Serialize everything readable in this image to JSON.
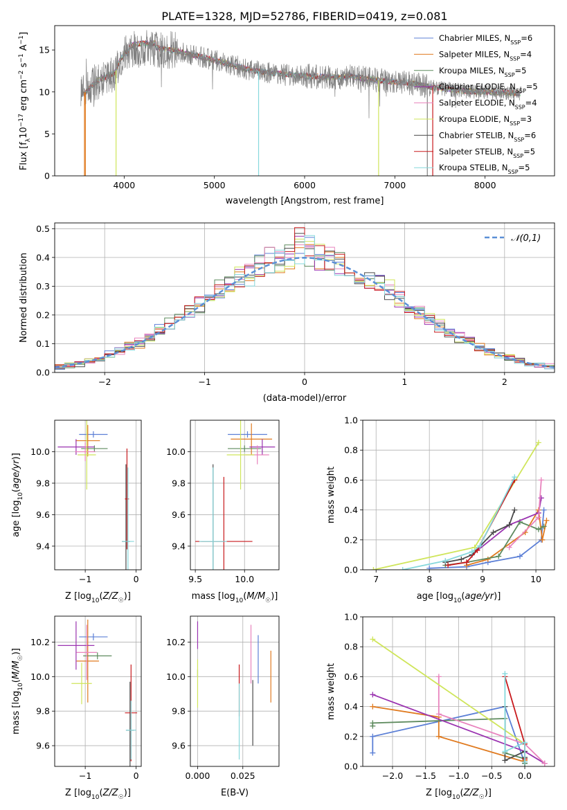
{
  "figure_title": "PLATE=1328, MJD=52786, FIBERID=0419, z=0.081",
  "colors": {
    "Chabrier MILES": "#5b7fd6",
    "Salpeter MILES": "#e07a1f",
    "Kroupa MILES": "#5d8a5d",
    "Chabrier ELODIE": "#9a32b0",
    "Salpeter ELODIE": "#e883bd",
    "Kroupa ELODIE": "#cfe55a",
    "Chabrier STELIB": "#4a4a4a",
    "Salpeter STELIB": "#c8191c",
    "Kroupa STELIB": "#86d8dc",
    "data": "#808080"
  },
  "chart_data": [
    {
      "id": "spectrum",
      "type": "line",
      "xlabel": "wavelength [Angstrom, rest frame]",
      "ylabel": "Flux [f_λ10^-17 erg cm^-2 s^-1 A^-1]",
      "xlim": [
        3230,
        8770
      ],
      "ylim": [
        0,
        17.9
      ],
      "xticks": [
        4000,
        5000,
        6000,
        7000,
        8000
      ],
      "yticks": [
        0,
        5,
        10,
        15
      ],
      "grid": false,
      "legend_position": "right",
      "legend": [
        {
          "name": "Chabrier MILES",
          "nssp": "6"
        },
        {
          "name": "Salpeter MILES",
          "nssp": "4"
        },
        {
          "name": "Kroupa MILES",
          "nssp": "5"
        },
        {
          "name": "Chabrier ELODIE",
          "nssp": "5"
        },
        {
          "name": "Salpeter ELODIE",
          "nssp": "4"
        },
        {
          "name": "Kroupa ELODIE",
          "nssp": "3"
        },
        {
          "name": "Chabrier STELIB",
          "nssp": "6"
        },
        {
          "name": "Salpeter STELIB",
          "nssp": "5"
        },
        {
          "name": "Kroupa STELIB",
          "nssp": "5"
        }
      ],
      "continuum": [
        [
          3520,
          9.5
        ],
        [
          3600,
          10.3
        ],
        [
          3700,
          11.3
        ],
        [
          3800,
          11.8
        ],
        [
          3900,
          12.3
        ],
        [
          3950,
          13.7
        ],
        [
          4000,
          14.6
        ],
        [
          4100,
          15.0
        ],
        [
          4200,
          15.2
        ],
        [
          4400,
          15.2
        ],
        [
          4600,
          14.8
        ],
        [
          4800,
          14.3
        ],
        [
          5000,
          13.8
        ],
        [
          5200,
          13.2
        ],
        [
          5400,
          12.6
        ],
        [
          5600,
          12.3
        ],
        [
          5800,
          12.1
        ],
        [
          6000,
          11.9
        ],
        [
          6200,
          11.8
        ],
        [
          6400,
          11.7
        ],
        [
          6500,
          11.9
        ],
        [
          6600,
          11.7
        ],
        [
          6800,
          11.4
        ],
        [
          7000,
          11.2
        ],
        [
          7200,
          11.0
        ],
        [
          7400,
          10.6
        ],
        [
          7600,
          10.3
        ],
        [
          7800,
          10.1
        ],
        [
          8000,
          10.0
        ],
        [
          8200,
          9.9
        ],
        [
          8400,
          9.8
        ]
      ]
    },
    {
      "id": "residuals",
      "type": "histogram",
      "xlabel": "(data-model)/error",
      "ylabel": "Normed distribution",
      "xlim": [
        -2.5,
        2.5
      ],
      "ylim": [
        0,
        0.52
      ],
      "xticks": [
        -2,
        -1,
        0,
        1,
        2
      ],
      "yticks": [
        0.0,
        0.1,
        0.2,
        0.3,
        0.4,
        0.5
      ],
      "grid": true,
      "bin_width": 0.1,
      "legend_position": "top-right",
      "legend": [
        {
          "name": "𝒩(0,1)"
        }
      ],
      "reference_curve": "normal pdf, mean 0, sigma 1"
    },
    {
      "id": "age_vs_Z",
      "type": "errorbar",
      "xlabel": "Z [log10(Z/Z☉)]",
      "ylabel": "age [log10(age/yr)]",
      "xlim": [
        -1.6,
        0.1
      ],
      "ylim": [
        9.25,
        10.2
      ],
      "xticks": [
        -1,
        0
      ],
      "yticks": [
        9.4,
        9.6,
        9.8,
        10.0
      ],
      "grid": true,
      "points": [
        {
          "model": "Chabrier MILES",
          "x": -0.84,
          "xerr": 0.28,
          "y": 10.11,
          "yerr": 0.02
        },
        {
          "model": "Salpeter MILES",
          "x": -0.95,
          "xerr": 0.24,
          "y": 10.07,
          "yerr": 0.1
        },
        {
          "model": "Kroupa MILES",
          "x": -0.82,
          "xerr": 0.26,
          "y": 10.02,
          "yerr": 0.02
        },
        {
          "model": "Chabrier ELODIE",
          "x": -1.18,
          "xerr": 0.36,
          "y": 10.03,
          "yerr": 0.05
        },
        {
          "model": "Salpeter ELODIE",
          "x": -1.0,
          "xerr": 0.2,
          "y": 10.0,
          "yerr": 0.06
        },
        {
          "model": "Kroupa ELODIE",
          "x": -0.97,
          "xerr": 0.18,
          "y": 9.98,
          "yerr": 0.22
        },
        {
          "model": "Chabrier STELIB",
          "x": -0.2,
          "xerr": 0.08,
          "y": 9.43,
          "yerr": 0.49
        },
        {
          "model": "Salpeter STELIB",
          "x": -0.18,
          "xerr": 0.04,
          "y": 9.7,
          "yerr": 0.32
        },
        {
          "model": "Kroupa STELIB",
          "x": -0.16,
          "xerr": 0.12,
          "y": 9.43,
          "yerr": 0.47
        }
      ]
    },
    {
      "id": "age_vs_mass",
      "type": "errorbar",
      "xlabel": "mass [log10(M/M☉)]",
      "ylabel": "",
      "xlim": [
        9.45,
        10.35
      ],
      "ylim": [
        9.25,
        10.2
      ],
      "xticks": [
        9.5,
        10.0
      ],
      "yticks": [
        9.4,
        9.6,
        9.8,
        10.0
      ],
      "grid": true,
      "points": [
        {
          "model": "Chabrier MILES",
          "x": 10.03,
          "xerr": 0.2,
          "y": 10.11,
          "yerr": 0.02
        },
        {
          "model": "Salpeter MILES",
          "x": 10.07,
          "xerr": 0.21,
          "y": 10.08,
          "yerr": 0.1
        },
        {
          "model": "Kroupa MILES",
          "x": 10.0,
          "xerr": 0.17,
          "y": 10.02,
          "yerr": 0.02
        },
        {
          "model": "Chabrier ELODIE",
          "x": 10.18,
          "xerr": 0.13,
          "y": 10.03,
          "yerr": 0.05
        },
        {
          "model": "Salpeter ELODIE",
          "x": 10.13,
          "xerr": 0.12,
          "y": 9.98,
          "yerr": 0.06
        },
        {
          "model": "Kroupa ELODIE",
          "x": 9.96,
          "xerr": 0.14,
          "y": 9.98,
          "yerr": 0.22
        },
        {
          "model": "Chabrier STELIB",
          "x": 9.68,
          "xerr": 0.12,
          "y": 9.43,
          "yerr": 0.49
        },
        {
          "model": "Salpeter STELIB",
          "x": 9.79,
          "xerr": 0.29,
          "y": 9.43,
          "yerr": 0.41
        },
        {
          "model": "Kroupa STELIB",
          "x": 9.68,
          "xerr": 0.14,
          "y": 9.43,
          "yerr": 0.47
        }
      ]
    },
    {
      "id": "massweight_vs_age",
      "type": "line",
      "xlabel": "age [log10(age/yr)]",
      "ylabel": "mass weight",
      "xlim": [
        6.75,
        10.35
      ],
      "ylim": [
        0,
        1.0
      ],
      "xticks": [
        7,
        8,
        9,
        10
      ],
      "yticks": [
        0.0,
        0.2,
        0.4,
        0.6,
        0.8,
        1.0
      ],
      "grid": true,
      "series": [
        {
          "model": "Chabrier MILES",
          "x": [
            8.0,
            8.7,
            9.1,
            9.7,
            10.1,
            10.15
          ],
          "y": [
            0.01,
            0.02,
            0.05,
            0.09,
            0.2,
            0.4
          ]
        },
        {
          "model": "Salpeter MILES",
          "x": [
            8.7,
            9.1,
            9.8,
            10.05,
            10.12,
            10.2
          ],
          "y": [
            0.03,
            0.07,
            0.25,
            0.4,
            0.2,
            0.33
          ]
        },
        {
          "model": "Kroupa MILES",
          "x": [
            8.3,
            8.7,
            9.3,
            9.7,
            10.05,
            10.15
          ],
          "y": [
            0.03,
            0.05,
            0.09,
            0.32,
            0.27,
            0.29
          ]
        },
        {
          "model": "Chabrier ELODIE",
          "x": [
            8.8,
            9.5,
            10.05,
            10.1
          ],
          "y": [
            0.1,
            0.3,
            0.38,
            0.48
          ]
        },
        {
          "model": "Salpeter ELODIE",
          "x": [
            9.5,
            10.05,
            10.1
          ],
          "y": [
            0.15,
            0.35,
            0.6
          ]
        },
        {
          "model": "Kroupa ELODIE",
          "x": [
            6.95,
            8.85,
            10.05
          ],
          "y": [
            0.0,
            0.15,
            0.85
          ]
        },
        {
          "model": "Chabrier STELIB",
          "x": [
            8.3,
            8.6,
            8.8,
            9.2,
            9.5,
            9.6
          ],
          "y": [
            0.05,
            0.07,
            0.1,
            0.25,
            0.3,
            0.4
          ]
        },
        {
          "model": "Salpeter STELIB",
          "x": [
            8.35,
            8.7,
            8.9,
            9.6
          ],
          "y": [
            0.03,
            0.05,
            0.13,
            0.6
          ]
        },
        {
          "model": "Kroupa STELIB",
          "x": [
            7.5,
            8.3,
            8.8,
            8.95,
            9.6
          ],
          "y": [
            0.0,
            0.06,
            0.12,
            0.16,
            0.62
          ]
        }
      ]
    },
    {
      "id": "mass_vs_Z",
      "type": "errorbar",
      "xlabel": "Z [log10(Z/Z☉)]",
      "ylabel": "mass [log10(M/M☉)]",
      "xlim": [
        -1.6,
        0.1
      ],
      "ylim": [
        9.48,
        10.35
      ],
      "xticks": [
        -1,
        0
      ],
      "yticks": [
        9.6,
        9.8,
        10.0,
        10.2
      ],
      "grid": true,
      "points": [
        {
          "model": "Chabrier MILES",
          "x": -0.84,
          "xerr": 0.28,
          "y": 10.23,
          "yerr": 0.02
        },
        {
          "model": "Salpeter MILES",
          "x": -0.95,
          "xerr": 0.22,
          "y": 10.09,
          "yerr": 0.24
        },
        {
          "model": "Kroupa MILES",
          "x": -0.76,
          "xerr": 0.28,
          "y": 10.12,
          "yerr": 0.02
        },
        {
          "model": "Chabrier ELODIE",
          "x": -1.18,
          "xerr": 0.36,
          "y": 10.18,
          "yerr": 0.14
        },
        {
          "model": "Salpeter ELODIE",
          "x": -0.97,
          "xerr": 0.2,
          "y": 10.14,
          "yerr": 0.16
        },
        {
          "model": "Kroupa ELODIE",
          "x": -1.07,
          "xerr": 0.2,
          "y": 9.96,
          "yerr": 0.12
        },
        {
          "model": "Chabrier STELIB",
          "x": -0.12,
          "xerr": 0.08,
          "y": 9.69,
          "yerr": 0.28
        },
        {
          "model": "Salpeter STELIB",
          "x": -0.1,
          "xerr": 0.12,
          "y": 9.79,
          "yerr": 0.28
        },
        {
          "model": "Kroupa STELIB",
          "x": -0.1,
          "xerr": 0.1,
          "y": 9.69,
          "yerr": 0.17
        }
      ]
    },
    {
      "id": "mass_vs_EBV",
      "type": "errorbar",
      "xlabel": "E(B-V)",
      "ylabel": "",
      "xlim": [
        -0.004,
        0.045
      ],
      "ylim": [
        9.48,
        10.35
      ],
      "xticks": [
        0.0,
        0.025
      ],
      "yticks": [
        9.6,
        9.8,
        10.0,
        10.2
      ],
      "grid": true,
      "points": [
        {
          "model": "Chabrier MILES",
          "x": 0.0335,
          "y": 10.1,
          "yerr": 0.14
        },
        {
          "model": "Salpeter MILES",
          "x": 0.0405,
          "y": 10.0,
          "yerr": 0.15
        },
        {
          "model": "Kroupa MILES",
          "x": 0.0,
          "y": 10.02,
          "yerr": 0.02
        },
        {
          "model": "Chabrier ELODIE",
          "x": 0.0,
          "y": 10.24,
          "yerr": 0.08
        },
        {
          "model": "Salpeter ELODIE",
          "x": 0.0295,
          "y": 10.13,
          "yerr": 0.17
        },
        {
          "model": "Kroupa ELODIE",
          "x": 0.0,
          "y": 9.96,
          "yerr": 0.14
        },
        {
          "model": "Chabrier STELIB",
          "x": 0.0305,
          "y": 9.79,
          "yerr": 0.19
        },
        {
          "model": "Salpeter STELIB",
          "x": 0.023,
          "y": 9.92,
          "yerr": 0.15
        },
        {
          "model": "Kroupa STELIB",
          "x": 0.023,
          "y": 9.74,
          "yerr": 0.22
        }
      ]
    },
    {
      "id": "massweight_vs_Z",
      "type": "line",
      "xlabel": "Z [log10(Z/Z☉)]",
      "ylabel": "mass weight",
      "xlim": [
        -2.45,
        0.45
      ],
      "ylim": [
        0,
        1.0
      ],
      "xticks": [
        -2.0,
        -1.5,
        -1.0,
        -0.5,
        0.0
      ],
      "yticks": [
        0.0,
        0.2,
        0.4,
        0.6,
        0.8,
        1.0
      ],
      "grid": true,
      "series": [
        {
          "model": "Chabrier MILES",
          "x": [
            -2.3,
            -2.3,
            -0.3,
            0.0,
            0.0
          ],
          "y": [
            0.09,
            0.2,
            0.4,
            0.02,
            0.03
          ]
        },
        {
          "model": "Salpeter MILES",
          "x": [
            -2.3,
            -1.3,
            -1.3,
            0.0,
            0.0
          ],
          "y": [
            0.4,
            0.33,
            0.2,
            0.03,
            0.04
          ]
        },
        {
          "model": "Kroupa MILES",
          "x": [
            -2.3,
            -2.3,
            -0.3,
            -0.3,
            0.0,
            0.0
          ],
          "y": [
            0.27,
            0.29,
            0.32,
            0.09,
            0.05,
            0.02
          ]
        },
        {
          "model": "Chabrier ELODIE",
          "x": [
            -2.3,
            0.0,
            0.3
          ],
          "y": [
            0.48,
            0.1,
            0.02
          ]
        },
        {
          "model": "Salpeter ELODIE",
          "x": [
            -1.3,
            -1.3,
            0.0,
            0.3
          ],
          "y": [
            0.6,
            0.35,
            0.15,
            0.02
          ]
        },
        {
          "model": "Kroupa ELODIE",
          "x": [
            -2.3,
            0.0
          ],
          "y": [
            0.85,
            0.15
          ]
        },
        {
          "model": "Chabrier STELIB",
          "x": [
            -0.3,
            -0.3,
            0.0,
            0.0
          ],
          "y": [
            0.4,
            0.04,
            0.1,
            0.06
          ]
        },
        {
          "model": "Salpeter STELIB",
          "x": [
            -0.3,
            0.0,
            0.0
          ],
          "y": [
            0.6,
            0.15,
            0.05
          ]
        },
        {
          "model": "Kroupa STELIB",
          "x": [
            -0.3,
            -0.3,
            0.0,
            0.0
          ],
          "y": [
            0.62,
            0.1,
            0.16,
            0.03
          ]
        }
      ]
    }
  ]
}
